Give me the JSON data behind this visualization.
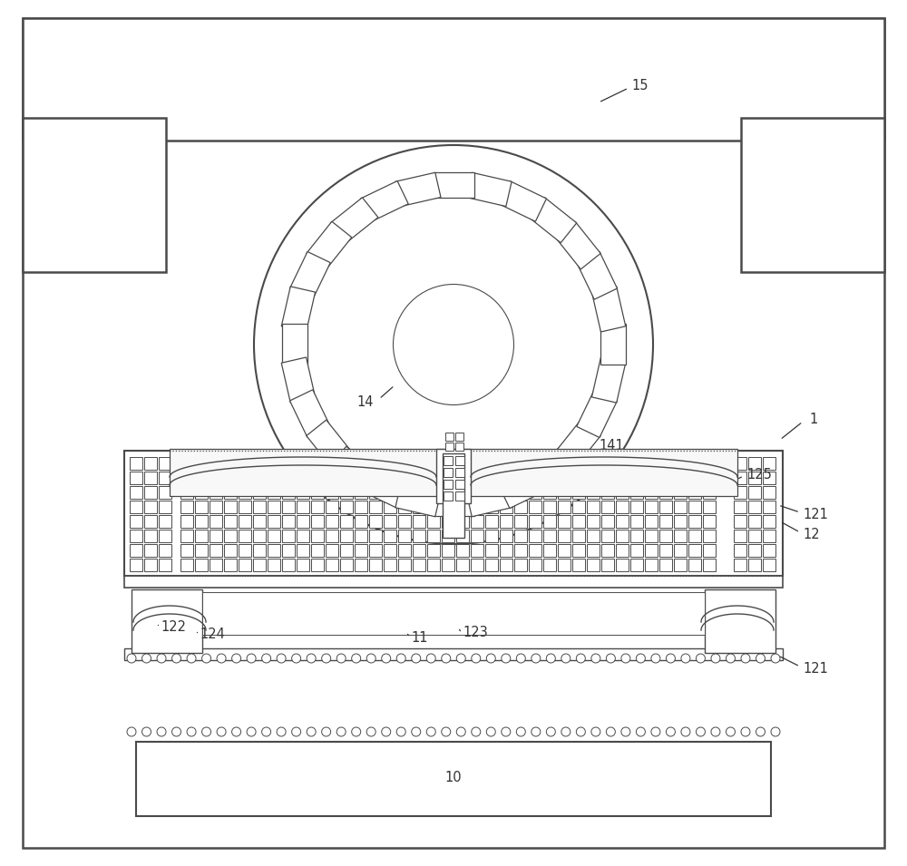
{
  "bg_color": "#ffffff",
  "line_color": "#4a4a4a",
  "line_width": 1.3,
  "fig_width": 10.0,
  "fig_height": 9.55
}
